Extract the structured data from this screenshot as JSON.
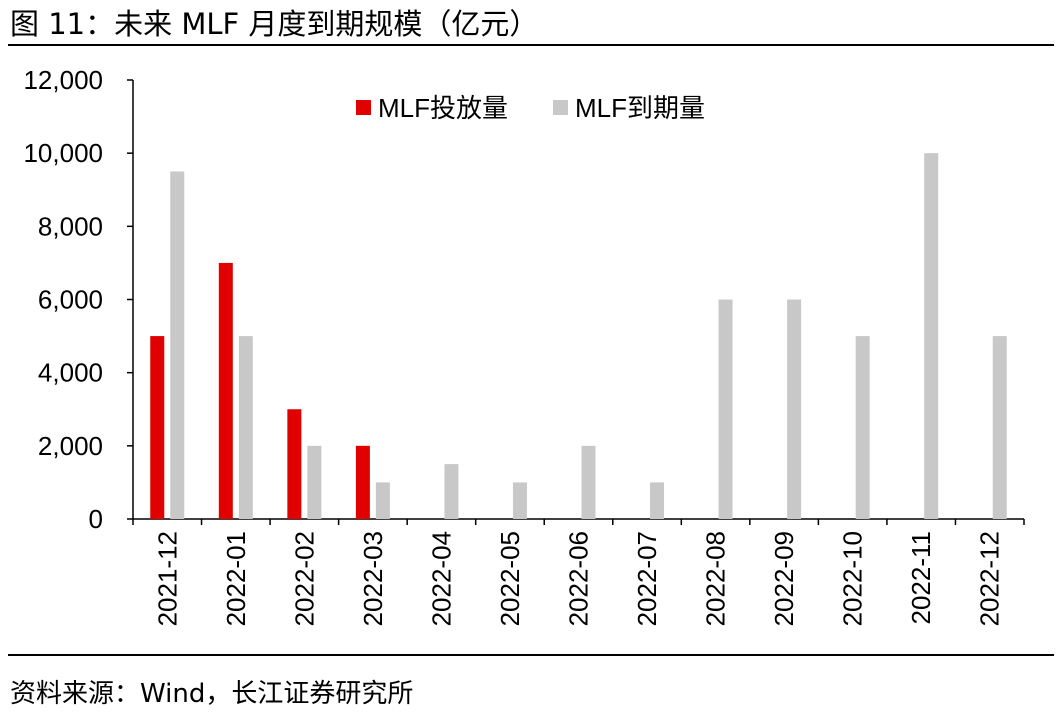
{
  "figure": {
    "title": "图 11：未来 MLF 月度到期规模（亿元）",
    "source": "资料来源：Wind，长江证券研究所"
  },
  "colors": {
    "issuance": "#e10000",
    "maturity": "#c8c8c8",
    "axis": "#000000"
  },
  "chart_data": {
    "type": "bar",
    "title": "未来 MLF 月度到期规模（亿元）",
    "xlabel": "",
    "ylabel": "",
    "ylim": [
      0,
      12000
    ],
    "yticks": [
      0,
      2000,
      4000,
      6000,
      8000,
      10000,
      12000
    ],
    "ytick_labels": [
      "0",
      "2,000",
      "4,000",
      "6,000",
      "8,000",
      "10,000",
      "12,000"
    ],
    "legend_position": "top-center",
    "grid": false,
    "categories": [
      "2021-12",
      "2022-01",
      "2022-02",
      "2022-03",
      "2022-04",
      "2022-05",
      "2022-06",
      "2022-07",
      "2022-08",
      "2022-09",
      "2022-10",
      "2022-11",
      "2022-12"
    ],
    "series": [
      {
        "name": "MLF投放量",
        "values": [
          5000,
          7000,
          3000,
          2000,
          null,
          null,
          null,
          null,
          null,
          null,
          null,
          null,
          null
        ]
      },
      {
        "name": "MLF到期量",
        "values": [
          9500,
          5000,
          2000,
          1000,
          1500,
          1000,
          2000,
          1000,
          6000,
          6000,
          5000,
          10000,
          5000
        ]
      }
    ]
  }
}
